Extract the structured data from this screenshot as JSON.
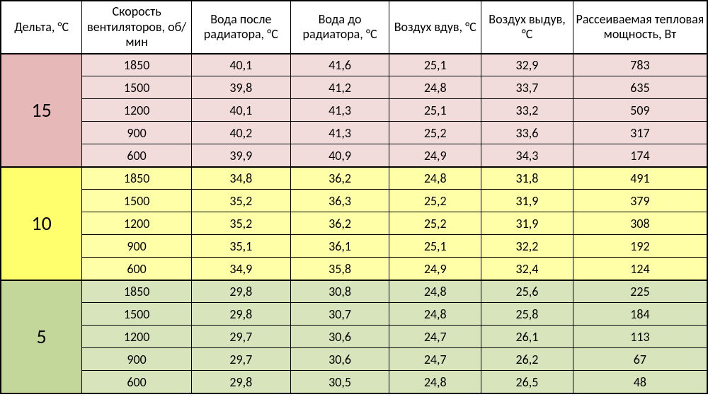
{
  "table": {
    "type": "table",
    "columns": [
      {
        "key": "delta",
        "label": "Дельта, °C",
        "width_pct": 11.5
      },
      {
        "key": "fan_rpm",
        "label": "Скорость вентиляторов, об/мин",
        "width_pct": 15.5
      },
      {
        "key": "water_out",
        "label": "Вода после радиатора, °C",
        "width_pct": 14.0
      },
      {
        "key": "water_in",
        "label": "Вода до радиатора, °C",
        "width_pct": 14.0
      },
      {
        "key": "air_in",
        "label": "Воздух вдув, °C",
        "width_pct": 13.0
      },
      {
        "key": "air_out",
        "label": "Воздух выдув, °C",
        "width_pct": 13.0
      },
      {
        "key": "power",
        "label": "Рассеиваемая тепловая мощность, Вт",
        "width_pct": 19.0
      }
    ],
    "header_fontsize": 18,
    "cell_fontsize": 18,
    "delta_fontsize": 28,
    "border_color": "#000000",
    "groups": [
      {
        "delta": "15",
        "bg_color": "#f2dcdb",
        "delta_bg_color": "#e6b8b7",
        "rows": [
          {
            "fan_rpm": "1850",
            "water_out": "40,1",
            "water_in": "41,6",
            "air_in": "25,1",
            "air_out": "32,9",
            "power": "783"
          },
          {
            "fan_rpm": "1500",
            "water_out": "39,8",
            "water_in": "41,2",
            "air_in": "24,8",
            "air_out": "33,7",
            "power": "635"
          },
          {
            "fan_rpm": "1200",
            "water_out": "40,1",
            "water_in": "41,3",
            "air_in": "25,1",
            "air_out": "33,2",
            "power": "509"
          },
          {
            "fan_rpm": "900",
            "water_out": "40,2",
            "water_in": "41,3",
            "air_in": "25,2",
            "air_out": "33,6",
            "power": "317"
          },
          {
            "fan_rpm": "600",
            "water_out": "39,9",
            "water_in": "40,9",
            "air_in": "24,9",
            "air_out": "34,3",
            "power": "174"
          }
        ]
      },
      {
        "delta": "10",
        "bg_color": "#ffffa7",
        "delta_bg_color": "#ffff6d",
        "rows": [
          {
            "fan_rpm": "1850",
            "water_out": "34,8",
            "water_in": "36,2",
            "air_in": "24,8",
            "air_out": "31,8",
            "power": "491"
          },
          {
            "fan_rpm": "1500",
            "water_out": "35,2",
            "water_in": "36,3",
            "air_in": "25,2",
            "air_out": "31,9",
            "power": "379"
          },
          {
            "fan_rpm": "1200",
            "water_out": "35,2",
            "water_in": "36,2",
            "air_in": "25,2",
            "air_out": "31,9",
            "power": "308"
          },
          {
            "fan_rpm": "900",
            "water_out": "35,1",
            "water_in": "36,1",
            "air_in": "25,1",
            "air_out": "32,2",
            "power": "192"
          },
          {
            "fan_rpm": "600",
            "water_out": "34,9",
            "water_in": "35,8",
            "air_in": "24,9",
            "air_out": "32,4",
            "power": "124"
          }
        ]
      },
      {
        "delta": "5",
        "bg_color": "#d8e4bc",
        "delta_bg_color": "#c4d79b",
        "rows": [
          {
            "fan_rpm": "1850",
            "water_out": "29,8",
            "water_in": "30,8",
            "air_in": "24,8",
            "air_out": "25,6",
            "power": "225"
          },
          {
            "fan_rpm": "1500",
            "water_out": "29,8",
            "water_in": "30,7",
            "air_in": "24,8",
            "air_out": "25,8",
            "power": "184"
          },
          {
            "fan_rpm": "1200",
            "water_out": "29,7",
            "water_in": "30,6",
            "air_in": "24,7",
            "air_out": "26,1",
            "power": "113"
          },
          {
            "fan_rpm": "900",
            "water_out": "29,7",
            "water_in": "30,6",
            "air_in": "24,7",
            "air_out": "26,2",
            "power": "67"
          },
          {
            "fan_rpm": "600",
            "water_out": "29,8",
            "water_in": "30,5",
            "air_in": "24,8",
            "air_out": "26,5",
            "power": "48"
          }
        ]
      }
    ]
  }
}
